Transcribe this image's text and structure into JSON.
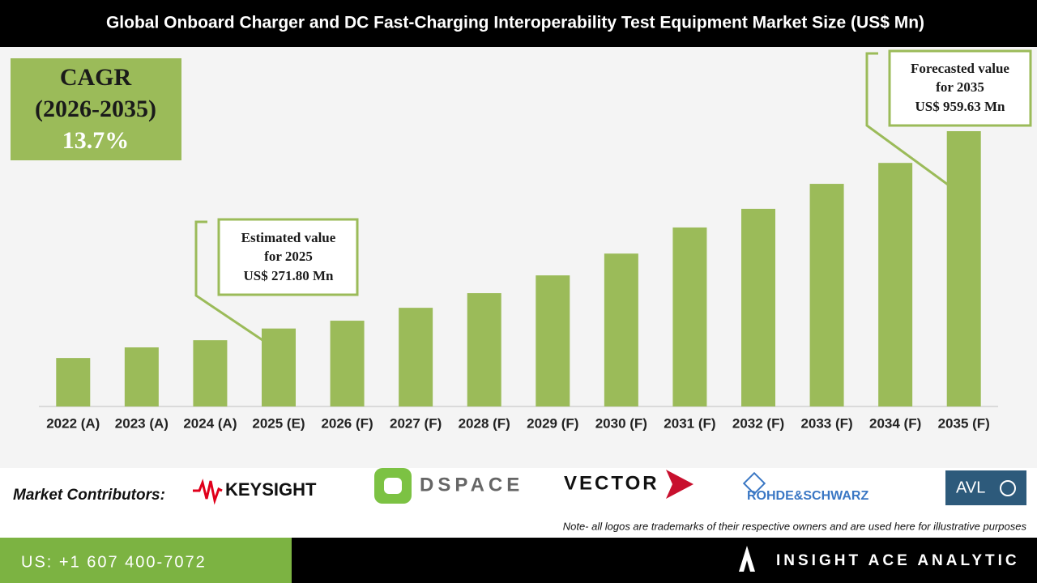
{
  "chart_data": {
    "type": "bar",
    "title": "Global Onboard Charger and DC Fast-Charging Interoperability Test Equipment Market Size (US$ Mn)",
    "categories": [
      "2022 (A)",
      "2023 (A)",
      "2024 (A)",
      "2025 (E)",
      "2026 (F)",
      "2027 (F)",
      "2028 (F)",
      "2029 (F)",
      "2030 (F)",
      "2031 (F)",
      "2032 (F)",
      "2033 (F)",
      "2034 (F)",
      "2035 (F)"
    ],
    "values": [
      169,
      206,
      231,
      271.8,
      299,
      344,
      395,
      457,
      533,
      624,
      689,
      776,
      849,
      959.63
    ],
    "color": "#9bbb59",
    "annotations": [
      {
        "lines": [
          "Estimated value",
          "for 2025",
          "US$ 271.80 Mn"
        ]
      },
      {
        "lines": [
          "Forecasted value",
          "for 2035",
          "US$ 959.63 Mn"
        ]
      }
    ]
  },
  "cagr": {
    "lines": [
      "CAGR",
      "(2026-2035)",
      "13.7%"
    ]
  },
  "footer": {
    "contributors_label": "Market Contributors:",
    "logos": [
      "KEYSIGHT",
      "DSPACE",
      "VECTOR",
      "ROHDE&SCHWARZ",
      "AVL"
    ],
    "note": "Note- all logos are trademarks of their respective owners and are used here for illustrative purposes",
    "phone": "US: +1 607 400-7072",
    "brand": "INSIGHT ACE ANALYTIC"
  }
}
